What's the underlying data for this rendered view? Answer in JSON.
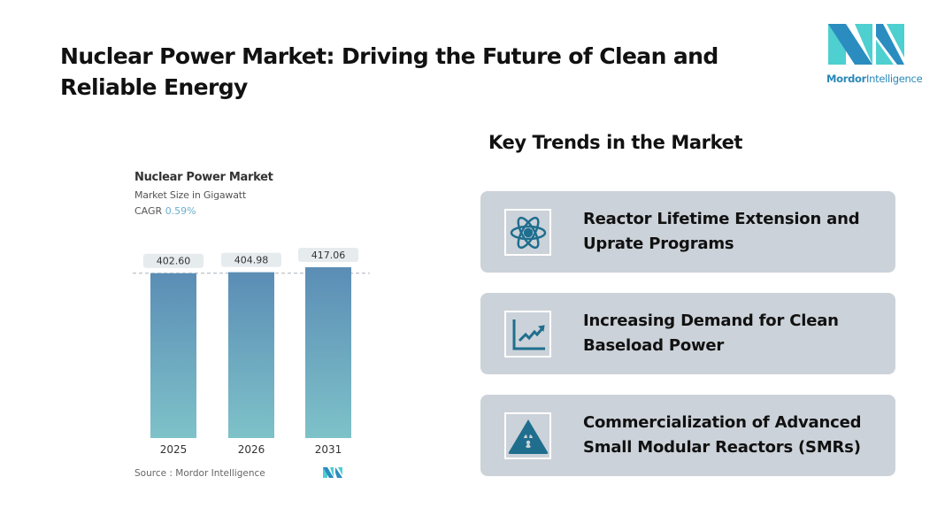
{
  "header": {
    "title": "Nuclear Power Market: Driving the Future of Clean and Reliable Energy"
  },
  "logo": {
    "brand": "Mordor",
    "brand2": "Intelligence"
  },
  "chart_data": {
    "type": "bar",
    "title": "Nuclear Power Market",
    "subtitle": "Market Size in Gigawatt",
    "cagr_label": "CAGR",
    "cagr_value": "0.59%",
    "categories": [
      "2025",
      "2026",
      "2031"
    ],
    "values": [
      402.6,
      404.98,
      417.06
    ],
    "data_labels": [
      "402.60",
      "404.98",
      "417.06"
    ],
    "ylim": [
      0,
      417.06
    ],
    "bar_color_top": "#5b8db5",
    "bar_color_bottom": "#7ec2c9",
    "source": "Source :  Mordor Intelligence"
  },
  "trends": {
    "heading": "Key Trends in the Market",
    "items": [
      {
        "label": "Reactor Lifetime Extension and Uprate Programs",
        "icon": "atom-icon"
      },
      {
        "label": "Increasing Demand for Clean Baseload Power",
        "icon": "trend-chart-icon"
      },
      {
        "label": "Commercialization of Advanced Small Modular Reactors (SMRs)",
        "icon": "radiation-warning-icon"
      }
    ],
    "icon_color": "#1f6e8e"
  }
}
